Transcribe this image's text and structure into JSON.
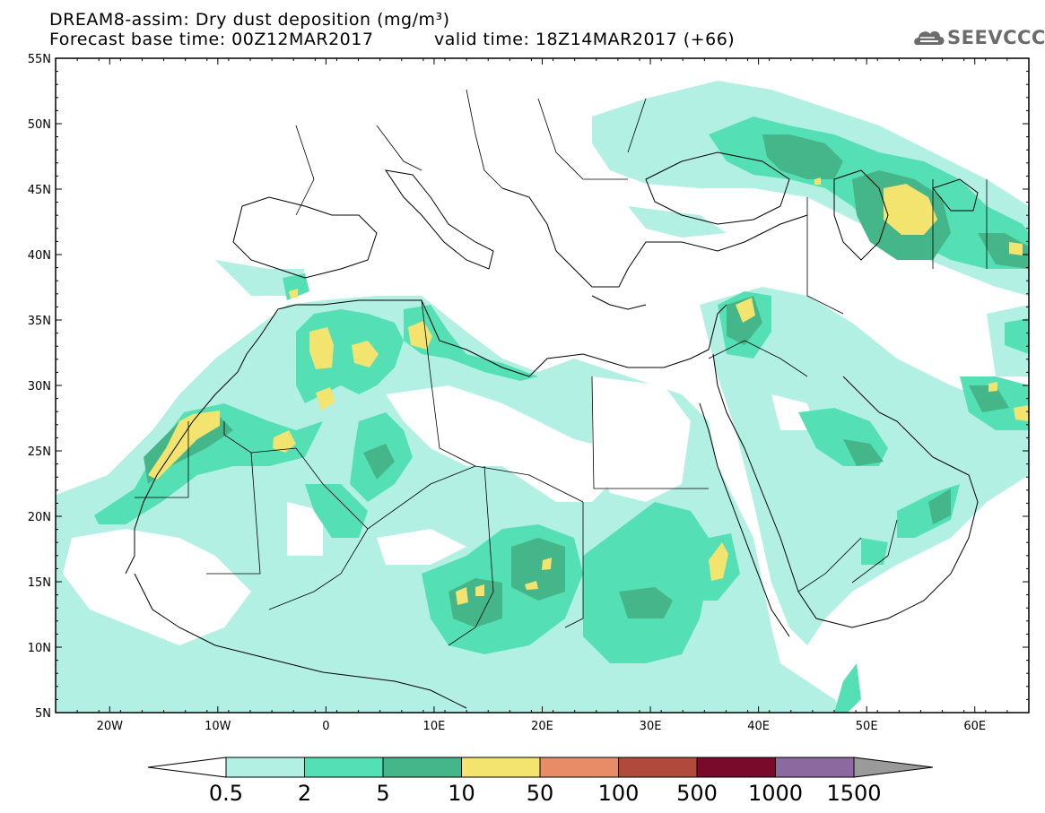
{
  "title": {
    "line1": "DREAM8-assim: Dry dust deposition (mg/m³)",
    "line2": "Forecast base time: 00Z12MAR2017",
    "valid": "valid time: 18Z14MAR2017 (+66)"
  },
  "logo": {
    "text": "SEEVCCC",
    "icon": "cloud-icon"
  },
  "map": {
    "lon_range": [
      -25,
      65
    ],
    "lat_range": [
      5,
      55
    ],
    "lat_labels": [
      "55N",
      "50N",
      "45N",
      "40N",
      "35N",
      "30N",
      "25N",
      "20N",
      "15N",
      "10N",
      "5N"
    ],
    "lon_labels": [
      "20W",
      "10W",
      "0",
      "10E",
      "20E",
      "30E",
      "40E",
      "50E",
      "60E"
    ]
  },
  "colorbar": {
    "labels": [
      "0.5",
      "2",
      "5",
      "10",
      "50",
      "100",
      "500",
      "1000",
      "1500"
    ],
    "colors": [
      "#b3f0e4",
      "#54e0b4",
      "#45b58a",
      "#f2e46e",
      "#e88c68",
      "#b04a3c",
      "#7a0a2c",
      "#8c6aa0"
    ],
    "under_color": "#ffffff",
    "over_color": "#9a9a9a"
  },
  "level_colors": {
    "l1": "#b3f0e4",
    "l2": "#54e0b4",
    "l3": "#45b58a",
    "l4": "#f2e46e"
  }
}
